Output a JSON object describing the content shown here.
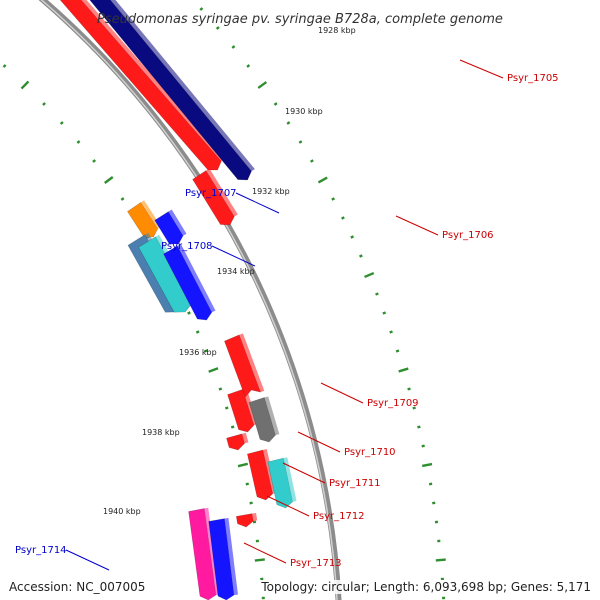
{
  "title": "Pseudomonas syringae pv. syringae B728a, complete genome",
  "footer": {
    "accession": "Accession: NC_007005",
    "stats": "Topology: circular; Length: 6,093,698 bp; Genes: 5,171"
  },
  "colors": {
    "backbone": "#8c8c8c",
    "tick_green": "#2f8f2f",
    "label_red": "#cc0000",
    "label_blue": "#0000cc",
    "red": "#ff1a1a",
    "blue": "#1414ff",
    "navy": "#0a0a80",
    "orange": "#ff8c00",
    "cyan": "#33cccc",
    "steel": "#4a7fb0",
    "gray": "#707070",
    "pink": "#ff1aa0"
  },
  "scale": {
    "labels": [
      "1928 kbp",
      "1930 kbp",
      "1932 kbp",
      "1934 kbp",
      "1936 kbp",
      "1938 kbp",
      "1940 kbp"
    ]
  },
  "genes": [
    {
      "label": "Psyr_1705",
      "color": "red",
      "side": "right"
    },
    {
      "label": "Psyr_1706",
      "color": "red",
      "side": "right"
    },
    {
      "label": "Psyr_1707",
      "color": "blue",
      "side": "left"
    },
    {
      "label": "Psyr_1708",
      "color": "blue",
      "side": "left"
    },
    {
      "label": "Psyr_1709",
      "color": "red",
      "side": "right"
    },
    {
      "label": "Psyr_1710",
      "color": "red",
      "side": "right"
    },
    {
      "label": "Psyr_1711",
      "color": "red",
      "side": "right"
    },
    {
      "label": "Psyr_1712",
      "color": "red",
      "side": "right"
    },
    {
      "label": "Psyr_1713",
      "color": "red",
      "side": "right"
    },
    {
      "label": "Psyr_1714",
      "color": "blue",
      "side": "left"
    }
  ]
}
